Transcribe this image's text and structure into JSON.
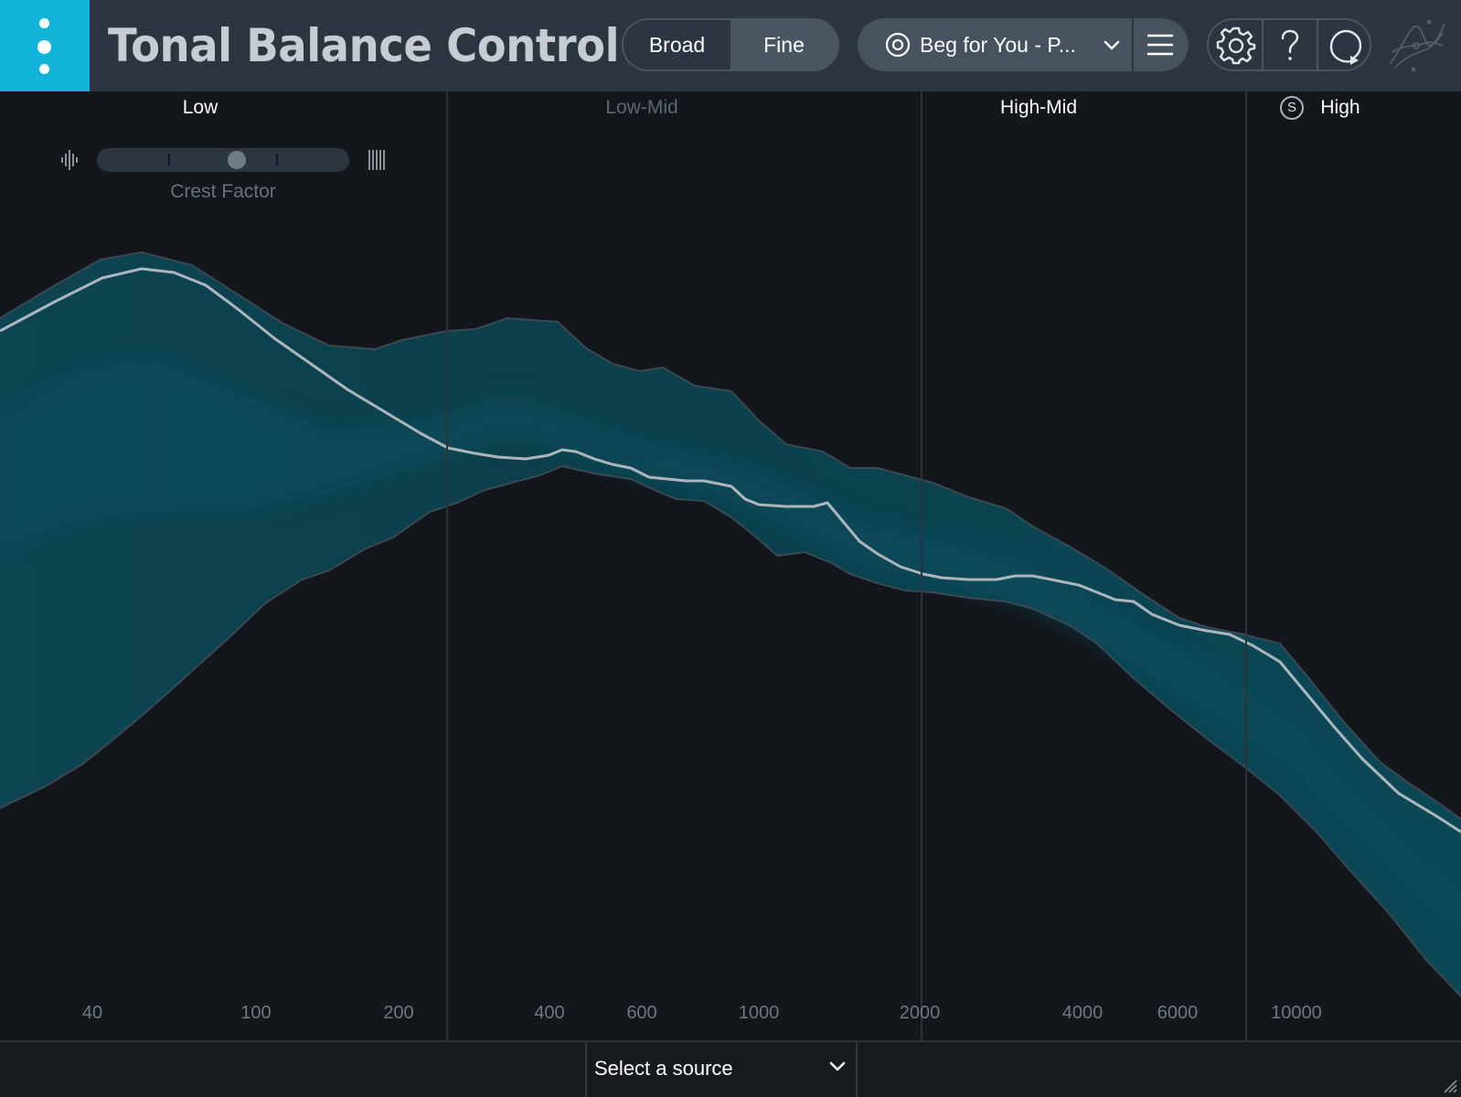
{
  "header": {
    "title": "Tonal Balance Control",
    "view_modes": [
      "Broad",
      "Fine"
    ],
    "selected_view": "Fine",
    "target_label": "Beg for You - P...",
    "icons": [
      "menu-icon",
      "target-icon",
      "chevron-down-icon",
      "hamburger-icon",
      "gear-icon",
      "help-icon",
      "loop-icon",
      "logo-icon"
    ]
  },
  "bands": {
    "low": "Low",
    "low_mid": "Low-Mid",
    "high_mid": "High-Mid",
    "high": "High",
    "solo": "S"
  },
  "crest": {
    "label": "Crest Factor",
    "value": 0.56
  },
  "freq_labels": [
    "40",
    "100",
    "200",
    "400",
    "600",
    "1000",
    "2000",
    "4000",
    "6000",
    "10000"
  ],
  "footer": {
    "source_label": "Select a source"
  },
  "colors": {
    "accent": "#12b5d9",
    "band_fill": "#0c4a57",
    "curve": "#aeb6bd"
  }
}
